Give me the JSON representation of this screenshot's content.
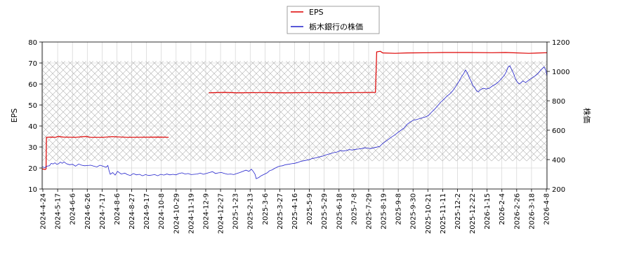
{
  "chart_data": {
    "type": "line",
    "legend": {
      "placement": "top-center",
      "entries": [
        "EPS",
        "栃木銀行の株価"
      ]
    },
    "colors": {
      "eps": "#dd0000",
      "price": "#2222cc",
      "hatch": "#b0b0b0",
      "grid": "#cccccc"
    },
    "grid": true,
    "x_ticks": [
      "2024-4-24",
      "2024-5-17",
      "2024-6-6",
      "2024-6-26",
      "2024-7-17",
      "2024-8-6",
      "2024-8-27",
      "2024-9-17",
      "2024-10-8",
      "2024-10-29",
      "2024-11-19",
      "2024-12-9",
      "2024-12-27",
      "2025-1-23",
      "2025-2-13",
      "2025-3-6",
      "2025-3-27",
      "2025-4-16",
      "2025-5-9",
      "2025-5-29",
      "2025-6-18",
      "2025-7-8",
      "2025-7-29",
      "2025-8-19",
      "2025-9-8",
      "2025-9-30",
      "2025-10-21",
      "2025-11-11",
      "2025-12-2",
      "2025-12-22",
      "2026-1-15",
      "2026-2-4",
      "2026-2-26",
      "2026-3-18",
      "2026-4-8"
    ],
    "left_axis": {
      "label": "EPS",
      "ylim": [
        10,
        80
      ],
      "ticks": [
        10,
        20,
        30,
        40,
        50,
        60,
        70,
        80
      ]
    },
    "right_axis": {
      "label": "株価",
      "ylim": [
        200,
        1200
      ],
      "ticks": [
        200,
        400,
        600,
        800,
        1000,
        1200
      ]
    },
    "shaded_band": {
      "axis": "right",
      "from": 390,
      "to": 1070
    },
    "series": [
      {
        "name": "EPS",
        "axis": "left",
        "segments": [
          [
            [
              0,
              19.5
            ],
            [
              2,
              19.5
            ],
            [
              5,
              19.3
            ],
            [
              6.5,
              19.6
            ],
            [
              7,
              34.6
            ],
            [
              15,
              34.7
            ],
            [
              22,
              34.6
            ],
            [
              26,
              35.0
            ],
            [
              35,
              34.7
            ],
            [
              55,
              34.6
            ],
            [
              72,
              35.0
            ],
            [
              80,
              34.6
            ],
            [
              100,
              34.6
            ],
            [
              115,
              34.9
            ],
            [
              140,
              34.6
            ],
            [
              195,
              34.7
            ],
            [
              208,
              34.6
            ]
          ],
          [
            [
              274,
              55.8
            ],
            [
              300,
              56.0
            ],
            [
              320,
              55.8
            ],
            [
              360,
              55.9
            ],
            [
              400,
              55.8
            ],
            [
              440,
              55.9
            ],
            [
              480,
              55.8
            ],
            [
              520,
              55.9
            ],
            [
              548,
              56.0
            ],
            [
              550,
              75.3
            ],
            [
              556,
              75.6
            ],
            [
              560,
              74.8
            ],
            [
              580,
              74.6
            ],
            [
              600,
              74.8
            ],
            [
              640,
              74.9
            ],
            [
              660,
              75.0
            ],
            [
              700,
              75.0
            ],
            [
              740,
              74.9
            ],
            [
              762,
              75.0
            ],
            [
              800,
              74.6
            ],
            [
              830,
              74.9
            ]
          ]
        ]
      },
      {
        "name": "栃木銀行の株価",
        "axis": "right",
        "points": [
          [
            0,
            352
          ],
          [
            4,
            345
          ],
          [
            8,
            355
          ],
          [
            12,
            358
          ],
          [
            15,
            375
          ],
          [
            18,
            370
          ],
          [
            21,
            378
          ],
          [
            24,
            368
          ],
          [
            27,
            372
          ],
          [
            30,
            383
          ],
          [
            33,
            375
          ],
          [
            36,
            385
          ],
          [
            40,
            372
          ],
          [
            45,
            365
          ],
          [
            50,
            368
          ],
          [
            55,
            355
          ],
          [
            60,
            370
          ],
          [
            65,
            362
          ],
          [
            70,
            358
          ],
          [
            75,
            360
          ],
          [
            80,
            362
          ],
          [
            85,
            355
          ],
          [
            90,
            350
          ],
          [
            95,
            362
          ],
          [
            100,
            355
          ],
          [
            105,
            348
          ],
          [
            108,
            360
          ],
          [
            110,
            325
          ],
          [
            112,
            300
          ],
          [
            116,
            312
          ],
          [
            120,
            295
          ],
          [
            124,
            320
          ],
          [
            130,
            302
          ],
          [
            136,
            308
          ],
          [
            140,
            298
          ],
          [
            145,
            292
          ],
          [
            150,
            305
          ],
          [
            155,
            296
          ],
          [
            160,
            300
          ],
          [
            165,
            290
          ],
          [
            170,
            298
          ],
          [
            175,
            292
          ],
          [
            180,
            295
          ],
          [
            185,
            298
          ],
          [
            190,
            290
          ],
          [
            195,
            300
          ],
          [
            200,
            295
          ],
          [
            205,
            302
          ],
          [
            210,
            296
          ],
          [
            215,
            300
          ],
          [
            220,
            296
          ],
          [
            225,
            305
          ],
          [
            230,
            310
          ],
          [
            235,
            302
          ],
          [
            240,
            305
          ],
          [
            245,
            298
          ],
          [
            250,
            300
          ],
          [
            255,
            302
          ],
          [
            260,
            308
          ],
          [
            265,
            300
          ],
          [
            270,
            306
          ],
          [
            275,
            312
          ],
          [
            280,
            318
          ],
          [
            285,
            305
          ],
          [
            290,
            310
          ],
          [
            295,
            312
          ],
          [
            300,
            305
          ],
          [
            305,
            300
          ],
          [
            310,
            302
          ],
          [
            315,
            298
          ],
          [
            320,
            305
          ],
          [
            325,
            312
          ],
          [
            330,
            320
          ],
          [
            335,
            328
          ],
          [
            340,
            320
          ],
          [
            344,
            335
          ],
          [
            347,
            320
          ],
          [
            350,
            300
          ],
          [
            352,
            270
          ],
          [
            356,
            278
          ],
          [
            360,
            290
          ],
          [
            365,
            300
          ],
          [
            370,
            310
          ],
          [
            374,
            325
          ],
          [
            378,
            330
          ],
          [
            382,
            340
          ],
          [
            386,
            348
          ],
          [
            390,
            355
          ],
          [
            395,
            358
          ],
          [
            400,
            365
          ],
          [
            405,
            368
          ],
          [
            410,
            372
          ],
          [
            415,
            375
          ],
          [
            420,
            380
          ],
          [
            425,
            388
          ],
          [
            430,
            392
          ],
          [
            435,
            396
          ],
          [
            440,
            402
          ],
          [
            445,
            408
          ],
          [
            450,
            412
          ],
          [
            455,
            418
          ],
          [
            460,
            422
          ],
          [
            465,
            430
          ],
          [
            470,
            436
          ],
          [
            475,
            442
          ],
          [
            480,
            448
          ],
          [
            485,
            452
          ],
          [
            490,
            462
          ],
          [
            495,
            458
          ],
          [
            500,
            462
          ],
          [
            505,
            468
          ],
          [
            510,
            465
          ],
          [
            515,
            470
          ],
          [
            520,
            472
          ],
          [
            525,
            475
          ],
          [
            530,
            480
          ],
          [
            535,
            478
          ],
          [
            540,
            475
          ],
          [
            545,
            480
          ],
          [
            550,
            485
          ],
          [
            555,
            490
          ],
          [
            560,
            510
          ],
          [
            565,
            525
          ],
          [
            570,
            540
          ],
          [
            575,
            555
          ],
          [
            580,
            568
          ],
          [
            585,
            585
          ],
          [
            590,
            600
          ],
          [
            595,
            615
          ],
          [
            600,
            640
          ],
          [
            605,
            655
          ],
          [
            610,
            668
          ],
          [
            615,
            672
          ],
          [
            620,
            678
          ],
          [
            625,
            685
          ],
          [
            630,
            690
          ],
          [
            635,
            700
          ],
          [
            640,
            722
          ],
          [
            645,
            742
          ],
          [
            650,
            765
          ],
          [
            655,
            790
          ],
          [
            660,
            808
          ],
          [
            665,
            830
          ],
          [
            670,
            846
          ],
          [
            675,
            868
          ],
          [
            680,
            898
          ],
          [
            685,
            930
          ],
          [
            690,
            968
          ],
          [
            693,
            985
          ],
          [
            696,
            1010
          ],
          [
            699,
            990
          ],
          [
            702,
            960
          ],
          [
            705,
            935
          ],
          [
            708,
            905
          ],
          [
            711,
            892
          ],
          [
            714,
            868
          ],
          [
            717,
            860
          ],
          [
            720,
            874
          ],
          [
            725,
            885
          ],
          [
            730,
            880
          ],
          [
            735,
            885
          ],
          [
            740,
            900
          ],
          [
            745,
            912
          ],
          [
            750,
            928
          ],
          [
            755,
            950
          ],
          [
            760,
            975
          ],
          [
            763,
            998
          ],
          [
            766,
            1030
          ],
          [
            769,
            1038
          ],
          [
            772,
            1010
          ],
          [
            775,
            985
          ],
          [
            778,
            950
          ],
          [
            781,
            928
          ],
          [
            784,
            915
          ],
          [
            787,
            922
          ],
          [
            790,
            935
          ],
          [
            795,
            925
          ],
          [
            800,
            940
          ],
          [
            805,
            955
          ],
          [
            810,
            968
          ],
          [
            815,
            985
          ],
          [
            820,
            1010
          ],
          [
            825,
            1030
          ],
          [
            828,
            1008
          ],
          [
            830,
            970
          ]
        ]
      }
    ]
  }
}
